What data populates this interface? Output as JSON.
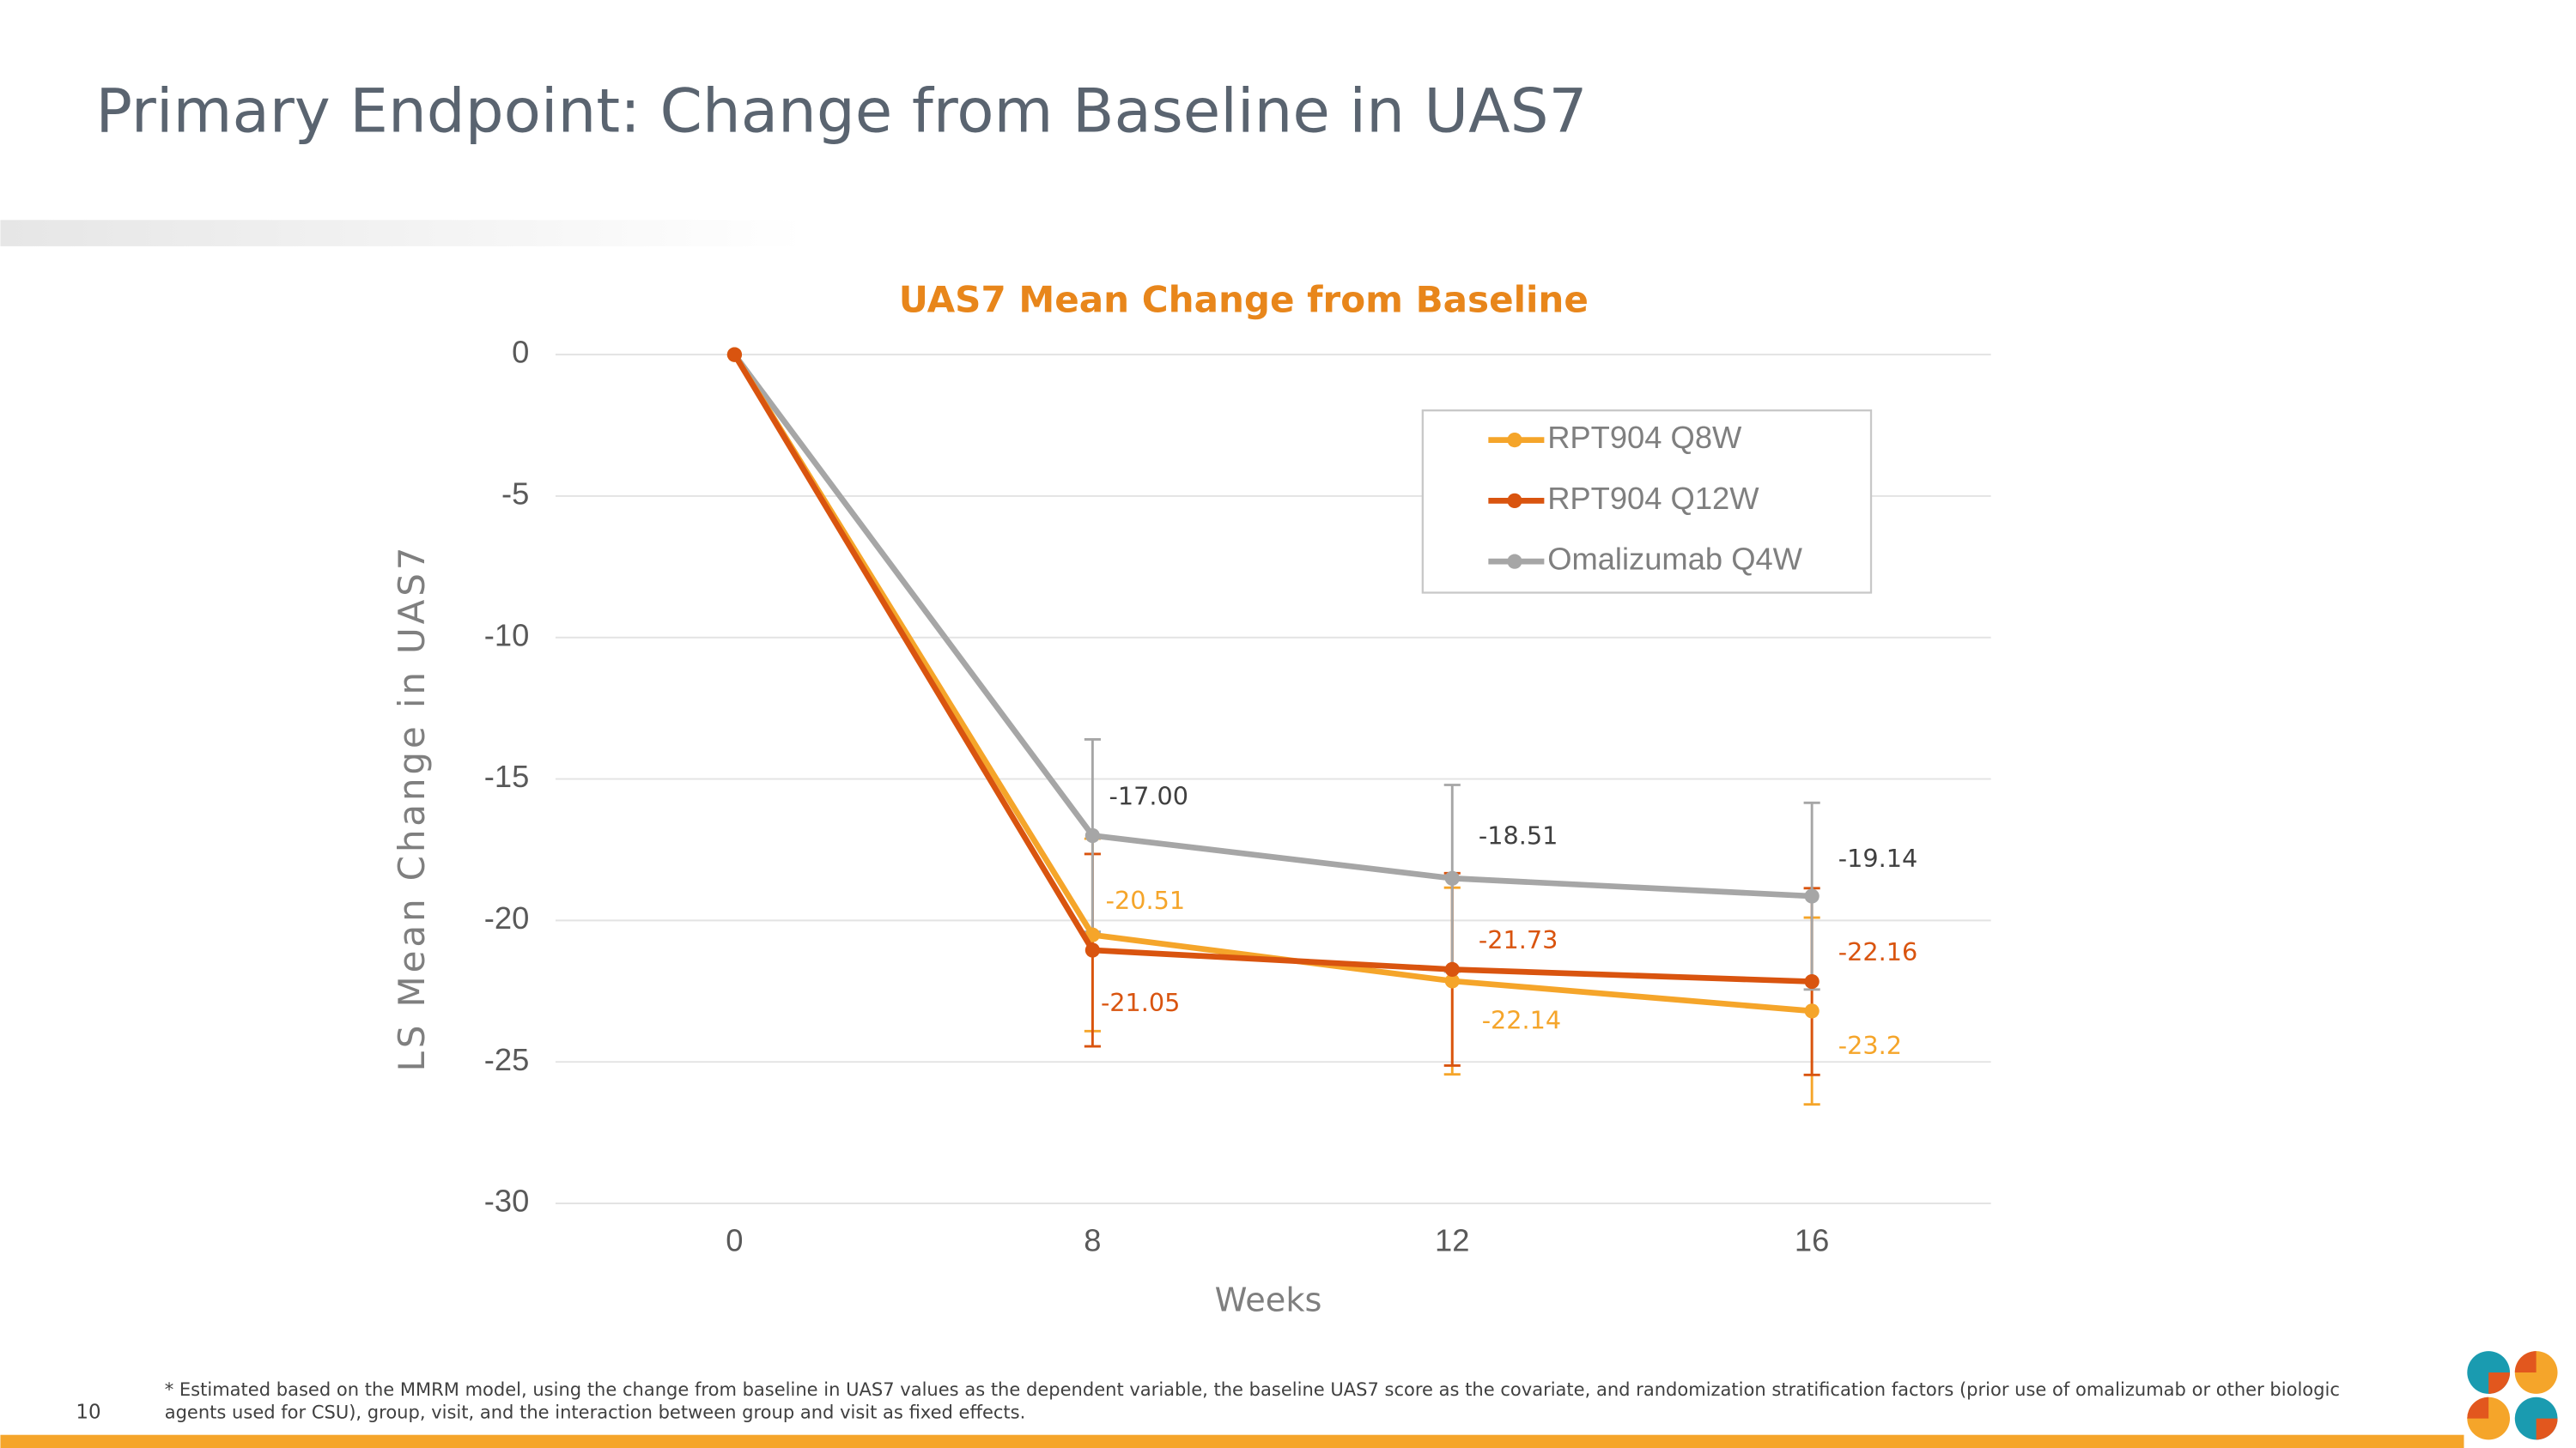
{
  "title": "Primary Endpoint: Change from Baseline in UAS7",
  "chart_data": {
    "type": "line",
    "title": "UAS7 Mean Change from Baseline",
    "x_label": "Weeks",
    "y_label": "LS Mean Change in UAS7",
    "categories": [
      "0",
      "8",
      "12",
      "16"
    ],
    "ylim": [
      -30,
      0
    ],
    "yticks": [
      0,
      -5,
      -10,
      -15,
      -20,
      -25,
      -30
    ],
    "grid": true,
    "legend": "upper right",
    "series": [
      {
        "name": "RPT904 Q8W",
        "color": "#f5a52a",
        "values": [
          0,
          -20.51,
          -22.14,
          -23.2
        ],
        "errors": [
          null,
          3.4,
          3.3,
          3.3
        ],
        "value_labels": [
          null,
          "-20.51",
          "-22.14",
          "-23.2"
        ]
      },
      {
        "name": "RPT904 Q12W",
        "color": "#d9540f",
        "values": [
          0,
          -21.05,
          -21.73,
          -22.16
        ],
        "errors": [
          null,
          3.4,
          3.4,
          3.3
        ],
        "value_labels": [
          null,
          "-21.05",
          "-21.73",
          "-22.16"
        ]
      },
      {
        "name": "Omalizumab Q4W",
        "color": "#a6a6a6",
        "values": [
          0,
          -17,
          -18.51,
          -19.14
        ],
        "errors": [
          null,
          3.4,
          3.3,
          3.3
        ],
        "value_labels": [
          null,
          "-17.00",
          "-18.51",
          "-19.14"
        ]
      }
    ]
  },
  "footnote": [
    "* Estimated based on the MMRM model, using the change from baseline in UAS7 values as the dependent variable, the baseline UAS7 score as the covariate, and randomization stratification factors (prior use of omalizumab or other biologic",
    "agents used for CSU), group, visit, and the interaction between group and visit as fixed effects."
  ],
  "page_number": "10"
}
